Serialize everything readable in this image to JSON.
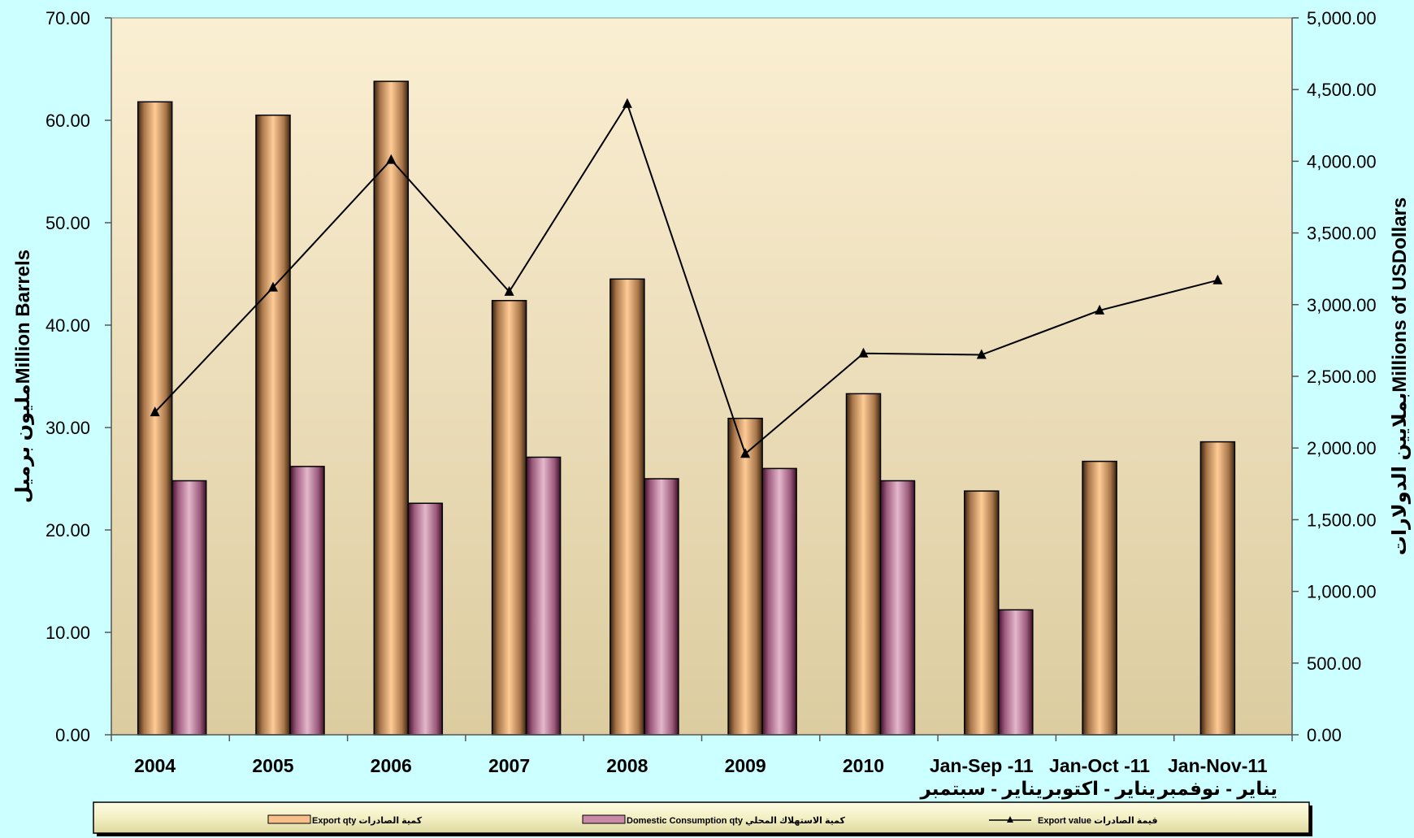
{
  "chart_data": {
    "type": "bar",
    "categories": [
      {
        "en": "2004",
        "ar": ""
      },
      {
        "en": "2005",
        "ar": ""
      },
      {
        "en": "2006",
        "ar": ""
      },
      {
        "en": "2007",
        "ar": ""
      },
      {
        "en": "2008",
        "ar": ""
      },
      {
        "en": "2009",
        "ar": ""
      },
      {
        "en": "2010",
        "ar": ""
      },
      {
        "en": "Jan-Sep -11",
        "ar": "يناير - سبتمبر"
      },
      {
        "en": "Jan-Oct -11",
        "ar": "يناير - اكتوبر"
      },
      {
        "en": "Jan-Nov-11",
        "ar": "يناير - نوفمبر"
      }
    ],
    "series": [
      {
        "name": "Export qty",
        "name_ar": "كمية الصادرات",
        "type": "bar",
        "axis": "left",
        "color": "#f7c08a",
        "values": [
          61.8,
          60.5,
          63.8,
          42.4,
          44.5,
          30.9,
          33.3,
          23.8,
          26.7,
          28.6
        ]
      },
      {
        "name": "Domestic Consumption qty",
        "name_ar": "كمية الاستهلاك المحلي",
        "type": "bar",
        "axis": "left",
        "color": "#c98aa8",
        "values": [
          24.8,
          26.2,
          22.6,
          27.1,
          25.0,
          26.0,
          24.8,
          12.2,
          null,
          null
        ]
      },
      {
        "name": "Export value",
        "name_ar": "قيمة الصادرات",
        "type": "line",
        "axis": "right",
        "color": "#000000",
        "values": [
          2250,
          3120,
          4010,
          3090,
          4400,
          1960,
          2660,
          2650,
          2960,
          3170
        ]
      }
    ],
    "y_left": {
      "label_en": "Million Barrels",
      "label_ar": "مليون برميل",
      "range": [
        0,
        70
      ],
      "ticks": [
        "0.00",
        "10.00",
        "20.00",
        "30.00",
        "40.00",
        "50.00",
        "60.00",
        "70.00"
      ]
    },
    "y_right": {
      "label_en": "Millions of USDollars",
      "label_ar": "بملايين الدولارات",
      "range": [
        0,
        5000
      ],
      "ticks": [
        "0.00",
        "500.00",
        "1,000.00",
        "1,500.00",
        "2,000.00",
        "2,500.00",
        "3,000.00",
        "3,500.00",
        "4,000.00",
        "4,500.00",
        "5,000.00"
      ]
    },
    "grid": false,
    "legend_position": "bottom",
    "colors": {
      "page_background": "#ccffff",
      "plot_top": "#fbefd3",
      "plot_bottom": "#dccca0",
      "legend_background": "#f3f0c4"
    }
  }
}
